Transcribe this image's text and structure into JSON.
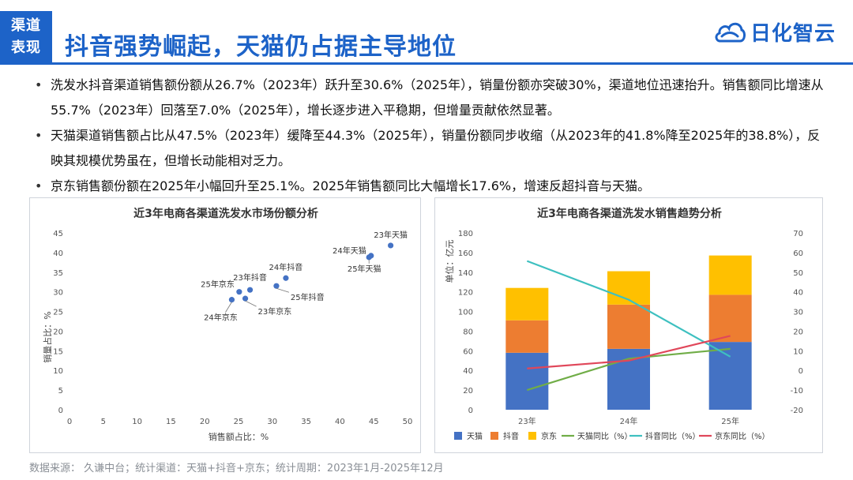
{
  "header": {
    "tag_line1": "渠道",
    "tag_line2": "表现",
    "title": "抖音强势崛起，天猫仍占据主导地位",
    "logo_text": "日化智云",
    "brand_color": "#1d63c8"
  },
  "bullets": [
    "洗发水抖音渠道销售额份额从26.7%（2023年）跃升至30.6%（2025年），销量份额亦突破30%，渠道地位迅速抬升。销售额同比增速从55.7%（2023年）回落至7.0%（2025年），增长逐步进入平稳期，但增量贡献依然显著。",
    "天猫渠道销售额占比从47.5%（2023年）缓降至44.3%（2025年），销量份额同步收缩（从2023年的41.8%降至2025年的38.8%），反映其规模优势虽在，但增长动能相对乏力。",
    "京东销售额份额在2025年小幅回升至25.1%。2025年销售额同比大幅增长17.6%，增速反超抖音与天猫。"
  ],
  "footer": "数据来源：  久谦中台；统计渠道：天猫+抖音+京东；统计周期：2023年1月-2025年12月",
  "chart_data": [
    {
      "type": "scatter",
      "title": "近3年电商各渠道洗发水市场份额分析",
      "xlabel": "销售额占比：%",
      "ylabel": "销量占比：%",
      "xlim": [
        0,
        50
      ],
      "ylim": [
        0,
        45
      ],
      "xticks": [
        0,
        5,
        10,
        15,
        20,
        25,
        30,
        35,
        40,
        45,
        50
      ],
      "yticks": [
        0,
        5,
        10,
        15,
        20,
        25,
        30,
        35,
        40,
        45
      ],
      "grid": false,
      "point_color": "#4472c4",
      "points": [
        {
          "label": "23年天猫",
          "x": 47.5,
          "y": 41.8
        },
        {
          "label": "24年天猫",
          "x": 44.6,
          "y": 39.2
        },
        {
          "label": "25年天猫",
          "x": 44.3,
          "y": 38.8
        },
        {
          "label": "24年抖音",
          "x": 32.0,
          "y": 33.5
        },
        {
          "label": "25年抖音",
          "x": 30.6,
          "y": 31.5
        },
        {
          "label": "23年抖音",
          "x": 26.7,
          "y": 30.5
        },
        {
          "label": "25年京东",
          "x": 25.1,
          "y": 30.0
        },
        {
          "label": "24年京东",
          "x": 24.0,
          "y": 28.0
        },
        {
          "label": "23年京东",
          "x": 26.0,
          "y": 28.3
        }
      ]
    },
    {
      "type": "bar",
      "stacked": true,
      "title": "近3年电商各渠道洗发水销售趋势分析",
      "ylabel": "单位：亿元",
      "categories": [
        "23年",
        "24年",
        "25年"
      ],
      "ylim": [
        0,
        180
      ],
      "yticks": [
        0,
        20,
        40,
        60,
        80,
        100,
        120,
        140,
        160,
        180
      ],
      "y2lim": [
        -20,
        70
      ],
      "y2ticks": [
        -20,
        -10,
        0,
        10,
        20,
        30,
        40,
        50,
        60,
        70
      ],
      "legend_position": "bottom",
      "series": [
        {
          "name": "天猫",
          "values": [
            58,
            62,
            69
          ],
          "color": "#4472c4"
        },
        {
          "name": "抖音",
          "values": [
            33,
            45,
            48
          ],
          "color": "#ed7d31"
        },
        {
          "name": "京东",
          "values": [
            33,
            34,
            40
          ],
          "color": "#ffc000"
        }
      ],
      "line_series": [
        {
          "name": "天猫同比（%）",
          "values": [
            -10,
            6,
            11
          ],
          "color": "#70ad47"
        },
        {
          "name": "抖音同比（%）",
          "values": [
            55.7,
            36,
            7.0
          ],
          "color": "#3ec0c0"
        },
        {
          "name": "京东同比（%）",
          "values": [
            1,
            5,
            17.6
          ],
          "color": "#e0475a"
        }
      ]
    }
  ]
}
